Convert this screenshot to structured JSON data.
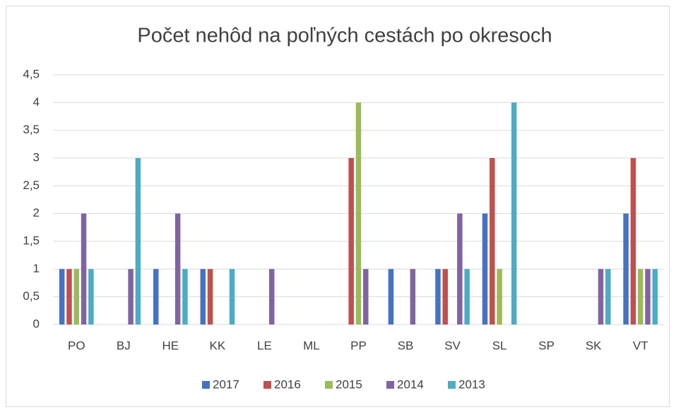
{
  "chart_data": {
    "type": "bar",
    "title": "Počet nehôd na poľných cestách po okresoch",
    "categories": [
      "PO",
      "BJ",
      "HE",
      "KK",
      "LE",
      "ML",
      "PP",
      "SB",
      "SV",
      "SL",
      "SP",
      "SK",
      "VT"
    ],
    "series": [
      {
        "name": "2017",
        "color": "#4472c4",
        "values": [
          1,
          null,
          1,
          1,
          null,
          null,
          null,
          1,
          1,
          2,
          null,
          null,
          2
        ]
      },
      {
        "name": "2016",
        "color": "#c0504d",
        "values": [
          1,
          null,
          null,
          1,
          null,
          null,
          3,
          null,
          1,
          3,
          null,
          null,
          3
        ]
      },
      {
        "name": "2015",
        "color": "#9bbb59",
        "values": [
          1,
          null,
          null,
          null,
          null,
          null,
          4,
          null,
          null,
          1,
          null,
          null,
          1
        ]
      },
      {
        "name": "2014",
        "color": "#8064a2",
        "values": [
          2,
          1,
          2,
          null,
          1,
          null,
          1,
          1,
          2,
          null,
          null,
          1,
          1
        ]
      },
      {
        "name": "2013",
        "color": "#4bacc6",
        "values": [
          1,
          3,
          1,
          1,
          null,
          null,
          null,
          null,
          1,
          4,
          null,
          1,
          1
        ]
      }
    ],
    "ylim": [
      0,
      4.5
    ],
    "yticks": [
      0,
      {
        "value": 0.5,
        "label": "0,5"
      },
      1,
      {
        "value": 1.5,
        "label": "1,5"
      },
      2,
      {
        "value": 2.5,
        "label": "2,5"
      },
      3,
      {
        "value": 3.5,
        "label": "3,5"
      },
      4,
      {
        "value": 4.5,
        "label": "4,5"
      }
    ],
    "grid": true,
    "legend": "bottom"
  }
}
